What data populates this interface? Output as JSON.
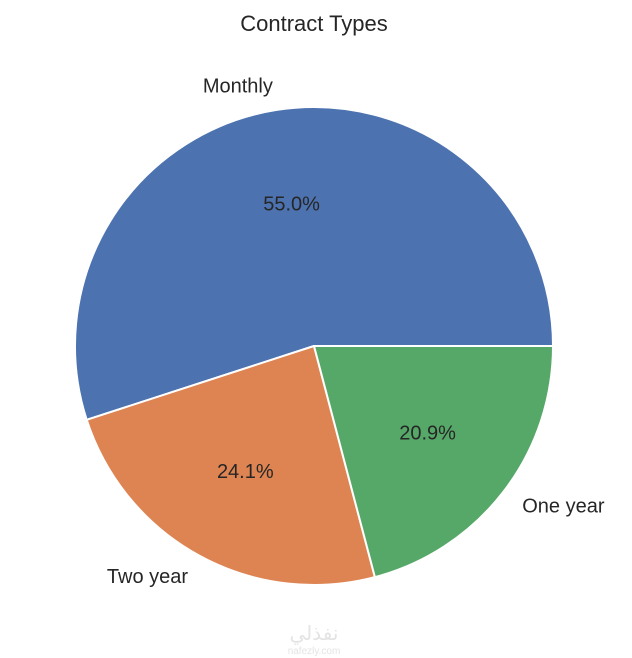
{
  "chart_data": {
    "type": "pie",
    "title": "Contract Types",
    "categories": [
      "Monthly",
      "Two year",
      "One year"
    ],
    "values": [
      55.0,
      24.1,
      20.9
    ],
    "value_labels": [
      "55.0%",
      "24.1%",
      "20.9%"
    ],
    "colors": [
      "#4c72b0",
      "#dd8452",
      "#55a868"
    ],
    "start_angle_deg": 0,
    "direction": "counterclockwise",
    "edge_color": "#ffffff"
  },
  "watermark": {
    "arabic": "نفذلي",
    "url": "nafezly.com"
  }
}
